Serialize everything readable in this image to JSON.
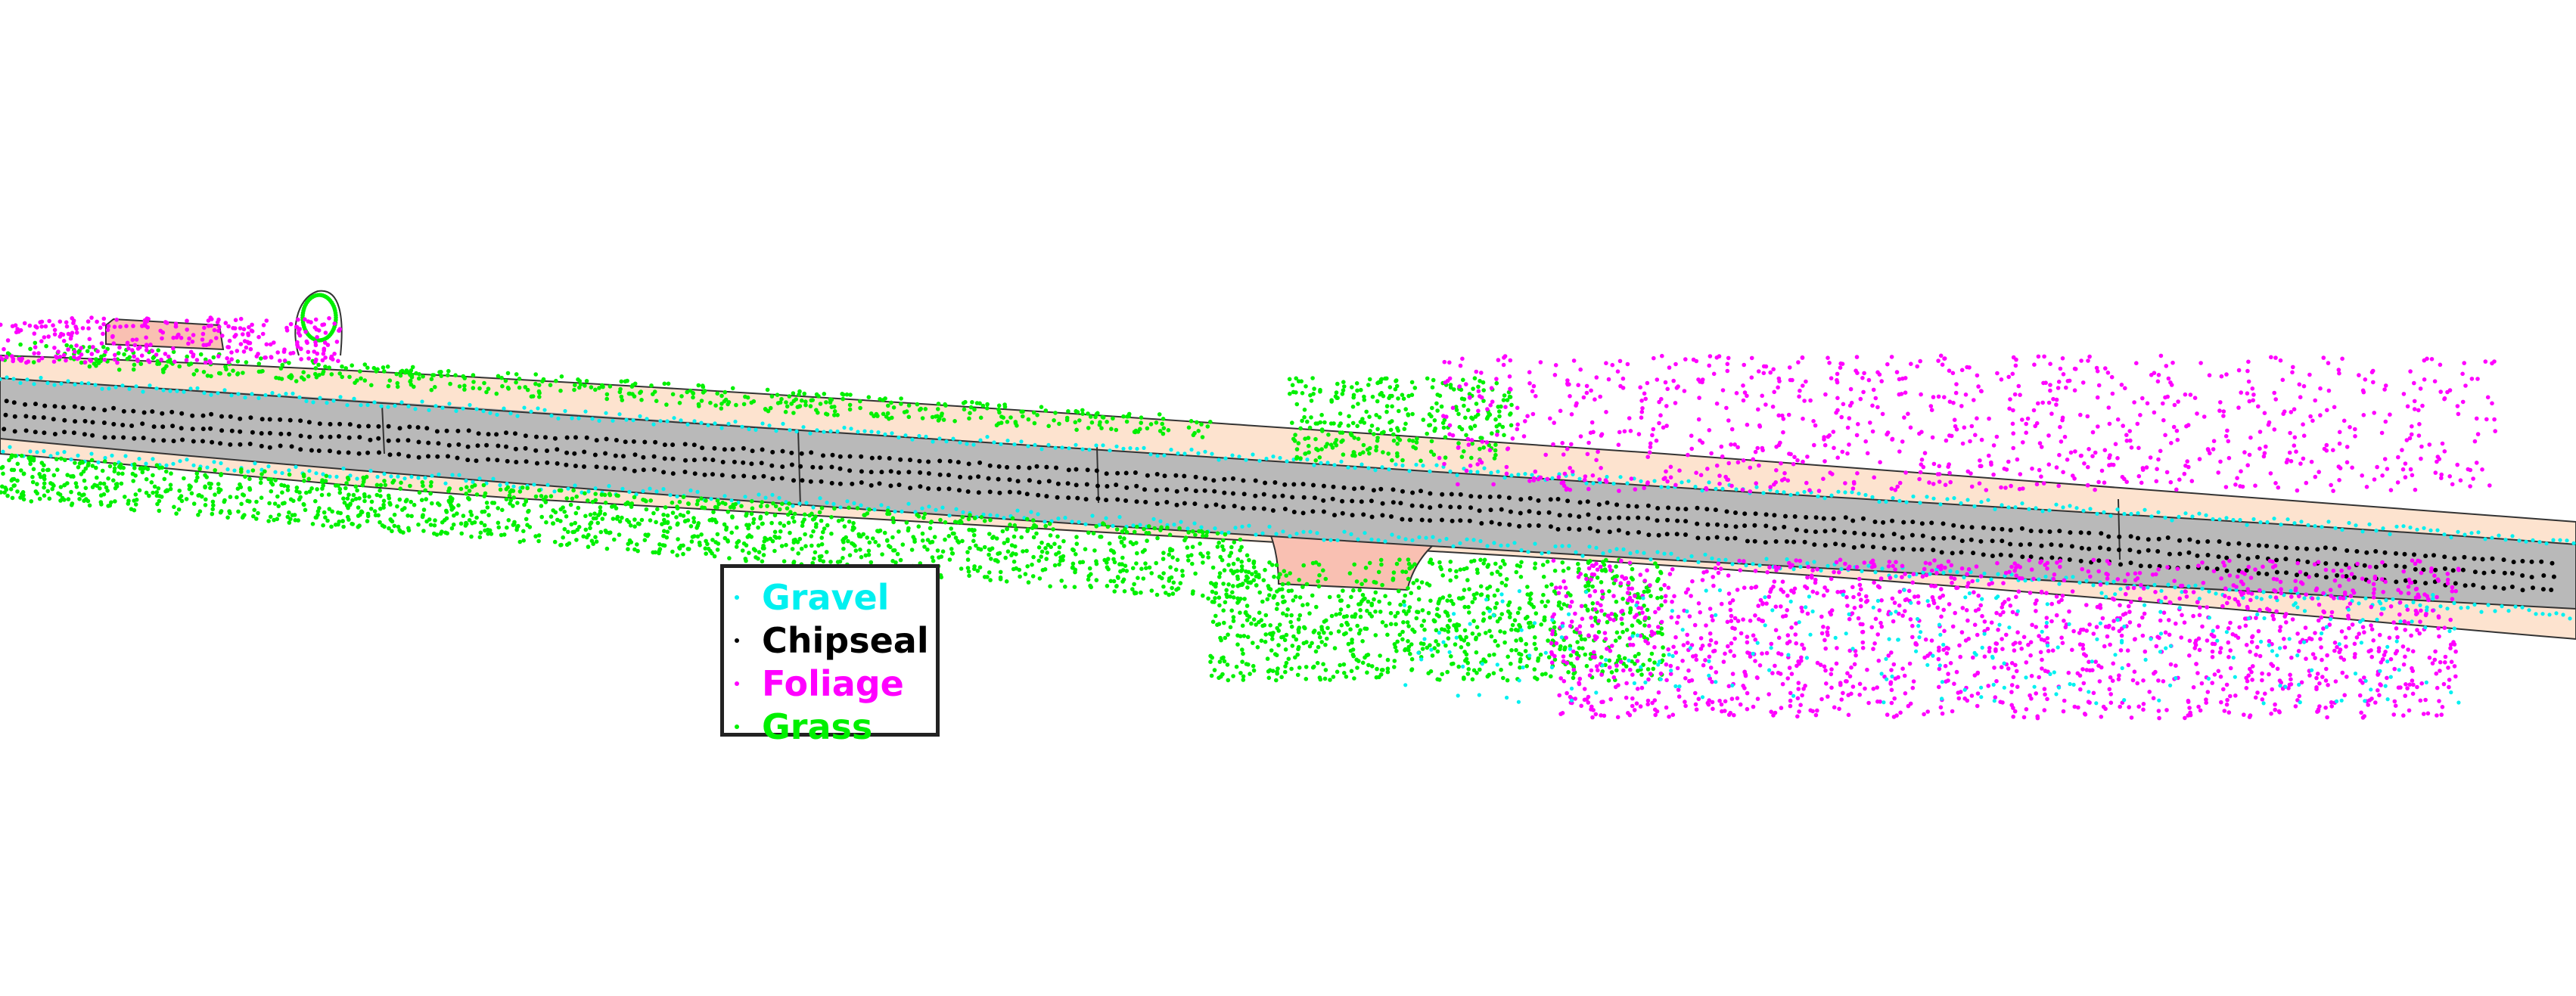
{
  "colors": {
    "background": "#ffffff",
    "road_surface": "#b9b9b9",
    "shoulder": "#fde3cf",
    "pad": "#f9c0b2",
    "outline": "#333333"
  },
  "legend": {
    "items": [
      {
        "label": "Gravel",
        "color": "#00f0f0"
      },
      {
        "label": "Chipseal",
        "color": "#000000"
      },
      {
        "label": "Foliage",
        "color": "#ff00ff"
      },
      {
        "label": "Grass",
        "color": "#00f000"
      }
    ]
  }
}
